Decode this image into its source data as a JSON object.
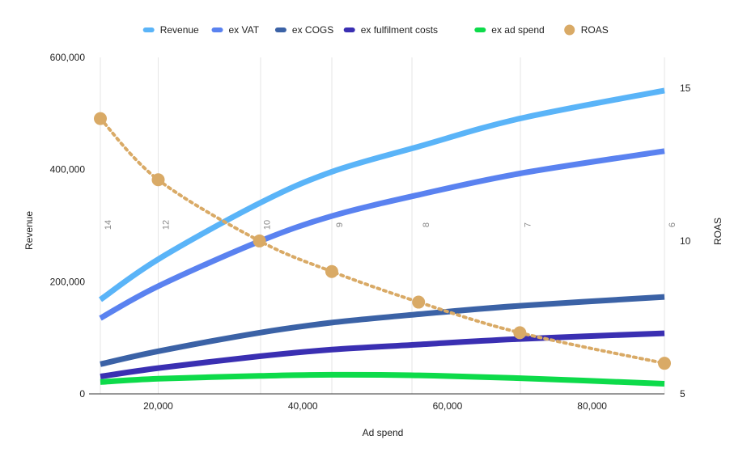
{
  "chart_data": {
    "type": "line",
    "title": "",
    "xlabel": "Ad spend",
    "ylabel": "Revenue",
    "y2label": "ROAS",
    "xlim": [
      12000,
      90000
    ],
    "ylim": [
      0,
      600000
    ],
    "y2lim": [
      5,
      16
    ],
    "x_ticks": [
      20000,
      40000,
      60000,
      80000
    ],
    "x_tick_labels": [
      "20,000",
      "40,000",
      "60,000",
      "80,000"
    ],
    "y_ticks": [
      0,
      200000,
      400000,
      600000
    ],
    "y_tick_labels": [
      "0",
      "200,000",
      "400,000",
      "600,000"
    ],
    "y2_ticks": [
      5,
      10,
      15
    ],
    "y2_tick_labels": [
      "5",
      "10",
      "15"
    ],
    "grid": "vertical",
    "legend_position": "top",
    "series": [
      {
        "name": "Revenue",
        "color": "#5ab4f8",
        "x": [
          12000,
          20000,
          34000,
          44000,
          56000,
          70000,
          90000
        ],
        "y": [
          168000,
          240000,
          340000,
          396000,
          441000,
          491000,
          541000
        ]
      },
      {
        "name": "ex VAT",
        "color": "#5a82f0",
        "x": [
          12000,
          20000,
          34000,
          44000,
          56000,
          70000,
          90000
        ],
        "y": [
          135000,
          192000,
          272000,
          317000,
          355000,
          393000,
          433000
        ]
      },
      {
        "name": "ex COGS",
        "color": "#3b62a6",
        "x": [
          12000,
          20000,
          34000,
          44000,
          56000,
          70000,
          90000
        ],
        "y": [
          53000,
          76000,
          109000,
          127000,
          142000,
          157000,
          173000
        ]
      },
      {
        "name": "ex fulfilment costs",
        "color": "#3a2fb2",
        "x": [
          12000,
          20000,
          34000,
          44000,
          56000,
          70000,
          90000
        ],
        "y": [
          31000,
          46000,
          67000,
          79000,
          88000,
          98000,
          108000
        ]
      },
      {
        "name": "ex ad spend",
        "color": "#0ddb4a",
        "x": [
          12000,
          20000,
          34000,
          44000,
          56000,
          70000,
          90000
        ],
        "y": [
          21000,
          27000,
          32000,
          34000,
          33000,
          28000,
          18000
        ]
      }
    ],
    "roas": {
      "name": "ROAS",
      "color": "#d9aa66",
      "x": [
        12000,
        20000,
        34000,
        44000,
        56000,
        70000,
        90000
      ],
      "y": [
        14,
        12,
        10,
        9,
        8,
        7,
        6
      ],
      "labels": [
        "14",
        "12",
        "10",
        "9",
        "8",
        "7",
        "6"
      ]
    }
  }
}
